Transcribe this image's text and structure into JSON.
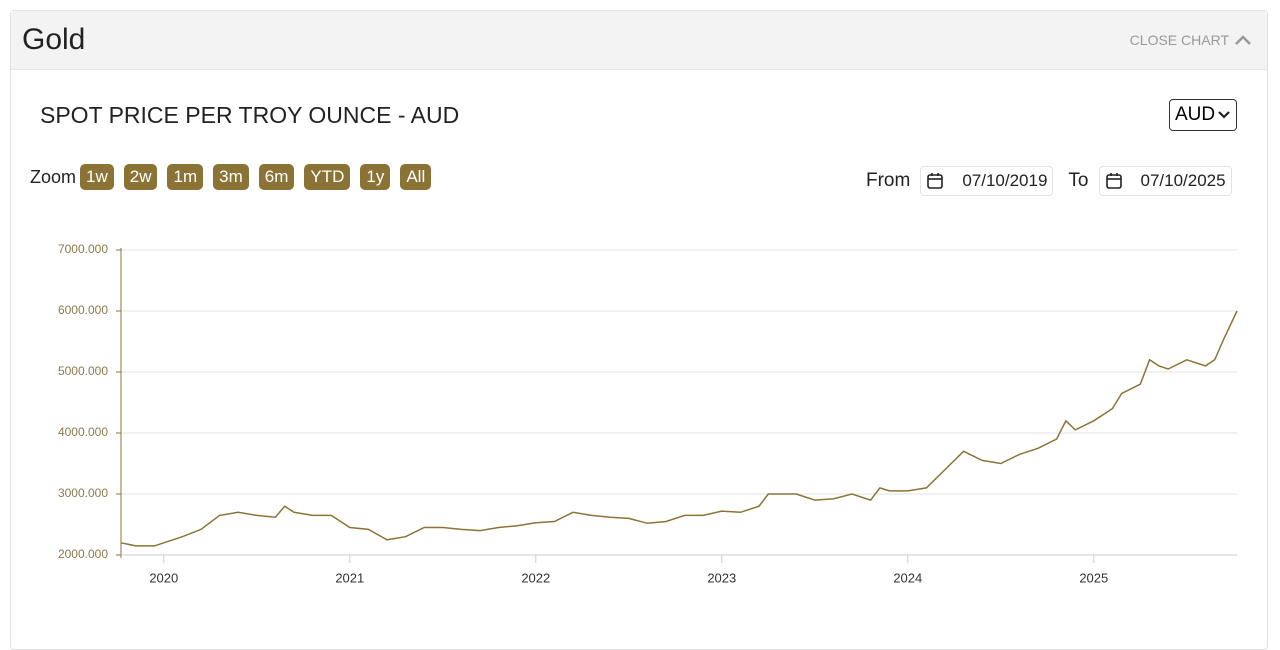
{
  "header": {
    "title": "Gold",
    "close": "CLOSE CHART"
  },
  "chart_title": "SPOT PRICE PER TROY OUNCE - AUD",
  "currency": "AUD",
  "zoom": {
    "label": "Zoom",
    "buttons": [
      "1w",
      "2w",
      "1m",
      "3m",
      "6m",
      "YTD",
      "1y",
      "All"
    ]
  },
  "range": {
    "from_label": "From",
    "from": "07/10/2019",
    "to_label": "To",
    "to": "07/10/2025"
  },
  "chart_data": {
    "type": "line",
    "color": "#8c7436",
    "x": [
      2019.77,
      2019.85,
      2019.95,
      2020.0,
      2020.1,
      2020.2,
      2020.3,
      2020.4,
      2020.5,
      2020.6,
      2020.65,
      2020.7,
      2020.8,
      2020.9,
      2021.0,
      2021.1,
      2021.2,
      2021.3,
      2021.4,
      2021.5,
      2021.6,
      2021.7,
      2021.8,
      2021.9,
      2022.0,
      2022.1,
      2022.2,
      2022.3,
      2022.4,
      2022.5,
      2022.6,
      2022.7,
      2022.8,
      2022.9,
      2023.0,
      2023.1,
      2023.2,
      2023.25,
      2023.4,
      2023.5,
      2023.6,
      2023.7,
      2023.8,
      2023.85,
      2023.9,
      2024.0,
      2024.1,
      2024.2,
      2024.3,
      2024.4,
      2024.5,
      2024.6,
      2024.7,
      2024.8,
      2024.85,
      2024.9,
      2025.0,
      2025.1,
      2025.15,
      2025.25,
      2025.3,
      2025.35,
      2025.4,
      2025.5,
      2025.6,
      2025.65,
      2025.7,
      2025.77
    ],
    "values": [
      2200,
      2150,
      2150,
      2200,
      2300,
      2420,
      2650,
      2700,
      2650,
      2620,
      2800,
      2700,
      2650,
      2650,
      2450,
      2420,
      2250,
      2300,
      2450,
      2450,
      2420,
      2400,
      2450,
      2480,
      2530,
      2550,
      2700,
      2650,
      2620,
      2600,
      2520,
      2550,
      2650,
      2650,
      2720,
      2700,
      2800,
      3000,
      3000,
      2900,
      2920,
      3000,
      2900,
      3100,
      3050,
      3050,
      3100,
      3400,
      3700,
      3550,
      3500,
      3650,
      3750,
      3900,
      4200,
      4050,
      4200,
      4400,
      4650,
      4800,
      5200,
      5100,
      5050,
      5200,
      5100,
      5200,
      5550,
      6000
    ],
    "xlim": [
      2019.77,
      2025.77
    ],
    "xticks": [
      2020,
      2021,
      2022,
      2023,
      2024,
      2025
    ],
    "ylim": [
      2000,
      7000
    ],
    "yticks": [
      {
        "value": 2000,
        "label": "2000.000"
      },
      {
        "value": 3000,
        "label": "3000.000"
      },
      {
        "value": 4000,
        "label": "4000.000"
      },
      {
        "value": 5000,
        "label": "5000.000"
      },
      {
        "value": 6000,
        "label": "6000.000"
      },
      {
        "value": 7000,
        "label": "7000.000"
      }
    ],
    "grid": true
  }
}
